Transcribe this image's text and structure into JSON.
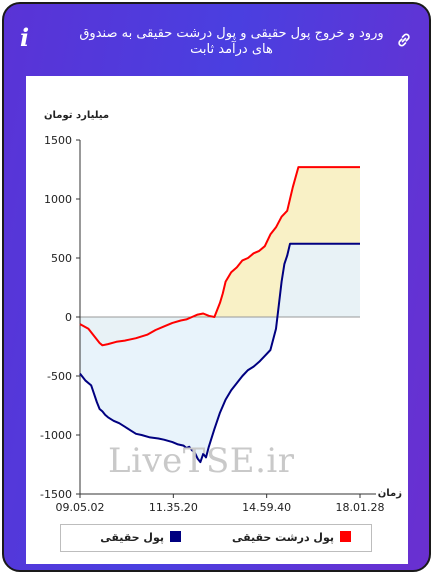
{
  "header": {
    "title": "ورود و خروج پول حقیقی و پول درشت حقیقی به صندوق های درآمد ثابت",
    "info_icon": "info-icon",
    "link_icon": "link-icon"
  },
  "watermark": "LiveTSE.ir",
  "colors": {
    "real": "#000080",
    "large_real": "#ff0000",
    "real_fill": "#e6f2fb",
    "large_fill": "#f8f0c0"
  },
  "chart_data": {
    "type": "line",
    "ylabel": "میلیارد تومان",
    "xlabel": "زمان",
    "ylim": [
      -1500,
      1500
    ],
    "yticks": [
      "1500",
      "1000",
      "500",
      "0",
      "-500",
      "-1000",
      "-1500"
    ],
    "xticks": [
      "09.05.02",
      "11.35.20",
      "14.59.40",
      "18.01.28"
    ],
    "series": [
      {
        "name": "پول حقیقی",
        "color": "#000080",
        "x": [
          0,
          0.02,
          0.04,
          0.05,
          0.06,
          0.07,
          0.08,
          0.09,
          0.1,
          0.12,
          0.14,
          0.16,
          0.18,
          0.2,
          0.22,
          0.25,
          0.28,
          0.3,
          0.33,
          0.35,
          0.37,
          0.38,
          0.39,
          0.4,
          0.41,
          0.42,
          0.43,
          0.44,
          0.45,
          0.46,
          0.48,
          0.5,
          0.52,
          0.54,
          0.56,
          0.58,
          0.6,
          0.62,
          0.64,
          0.66,
          0.68,
          0.7,
          0.71,
          0.72,
          0.73,
          0.74,
          0.75,
          0.77,
          0.8,
          0.85,
          0.9,
          0.95,
          1.0
        ],
        "values": [
          -480,
          -540,
          -580,
          -650,
          -720,
          -780,
          -800,
          -830,
          -850,
          -880,
          -900,
          -930,
          -960,
          -990,
          -1000,
          -1020,
          -1030,
          -1040,
          -1060,
          -1080,
          -1090,
          -1110,
          -1100,
          -1130,
          -1150,
          -1200,
          -1230,
          -1160,
          -1190,
          -1100,
          -950,
          -810,
          -700,
          -620,
          -560,
          -500,
          -450,
          -420,
          -380,
          -330,
          -280,
          -100,
          100,
          300,
          450,
          520,
          620,
          620,
          620,
          620,
          620,
          620,
          620
        ]
      },
      {
        "name": "پول درشت حقیقی",
        "color": "#ff0000",
        "x": [
          0,
          0.03,
          0.05,
          0.07,
          0.08,
          0.1,
          0.13,
          0.16,
          0.2,
          0.24,
          0.27,
          0.3,
          0.33,
          0.36,
          0.38,
          0.4,
          0.42,
          0.44,
          0.46,
          0.48,
          0.5,
          0.51,
          0.52,
          0.54,
          0.56,
          0.58,
          0.6,
          0.62,
          0.64,
          0.66,
          0.68,
          0.7,
          0.72,
          0.74,
          0.76,
          0.78,
          0.8,
          0.85,
          0.9,
          0.95,
          1.0
        ],
        "values": [
          -60,
          -100,
          -160,
          -220,
          -240,
          -230,
          -210,
          -200,
          -180,
          -150,
          -110,
          -80,
          -50,
          -30,
          -20,
          0,
          20,
          30,
          10,
          0,
          120,
          200,
          300,
          380,
          420,
          480,
          500,
          540,
          560,
          600,
          700,
          760,
          850,
          900,
          1100,
          1270,
          1270,
          1270,
          1270,
          1270,
          1270
        ]
      }
    ],
    "legend_placement": "bottom"
  }
}
